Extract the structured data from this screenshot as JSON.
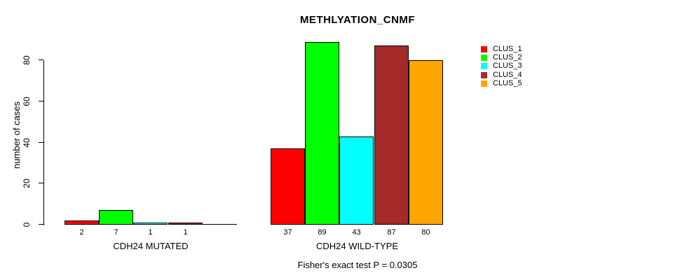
{
  "chart_data": {
    "type": "bar",
    "title": "METHLYATION_CNMF",
    "ylabel": "number of cases",
    "xlabel": "",
    "ylim": [
      0,
      89
    ],
    "yticks": [
      0,
      20,
      40,
      60,
      80
    ],
    "grid": false,
    "legend_position": "right-outside-top",
    "categories": [
      "CDH24 MUTATED",
      "CDH24 WILD-TYPE"
    ],
    "series": [
      {
        "name": "CLUS_1",
        "color": "#FF0000",
        "values": [
          2,
          37
        ]
      },
      {
        "name": "CLUS_2",
        "color": "#00FF00",
        "values": [
          7,
          89
        ]
      },
      {
        "name": "CLUS_3",
        "color": "#00FFFF",
        "values": [
          1,
          43
        ]
      },
      {
        "name": "CLUS_4",
        "color": "#A52A2A",
        "values": [
          1,
          87
        ]
      },
      {
        "name": "CLUS_5",
        "color": "#FFA500",
        "values": [
          0,
          80
        ]
      }
    ],
    "bar_value_labels": [
      [
        "2",
        "7",
        "1",
        "1",
        ""
      ],
      [
        "37",
        "89",
        "43",
        "87",
        "80"
      ]
    ],
    "footnote": "Fisher's exact test P = 0.0305",
    "colors": {
      "axis": "#000000",
      "text": "#000000",
      "background": "#ffffff"
    }
  }
}
